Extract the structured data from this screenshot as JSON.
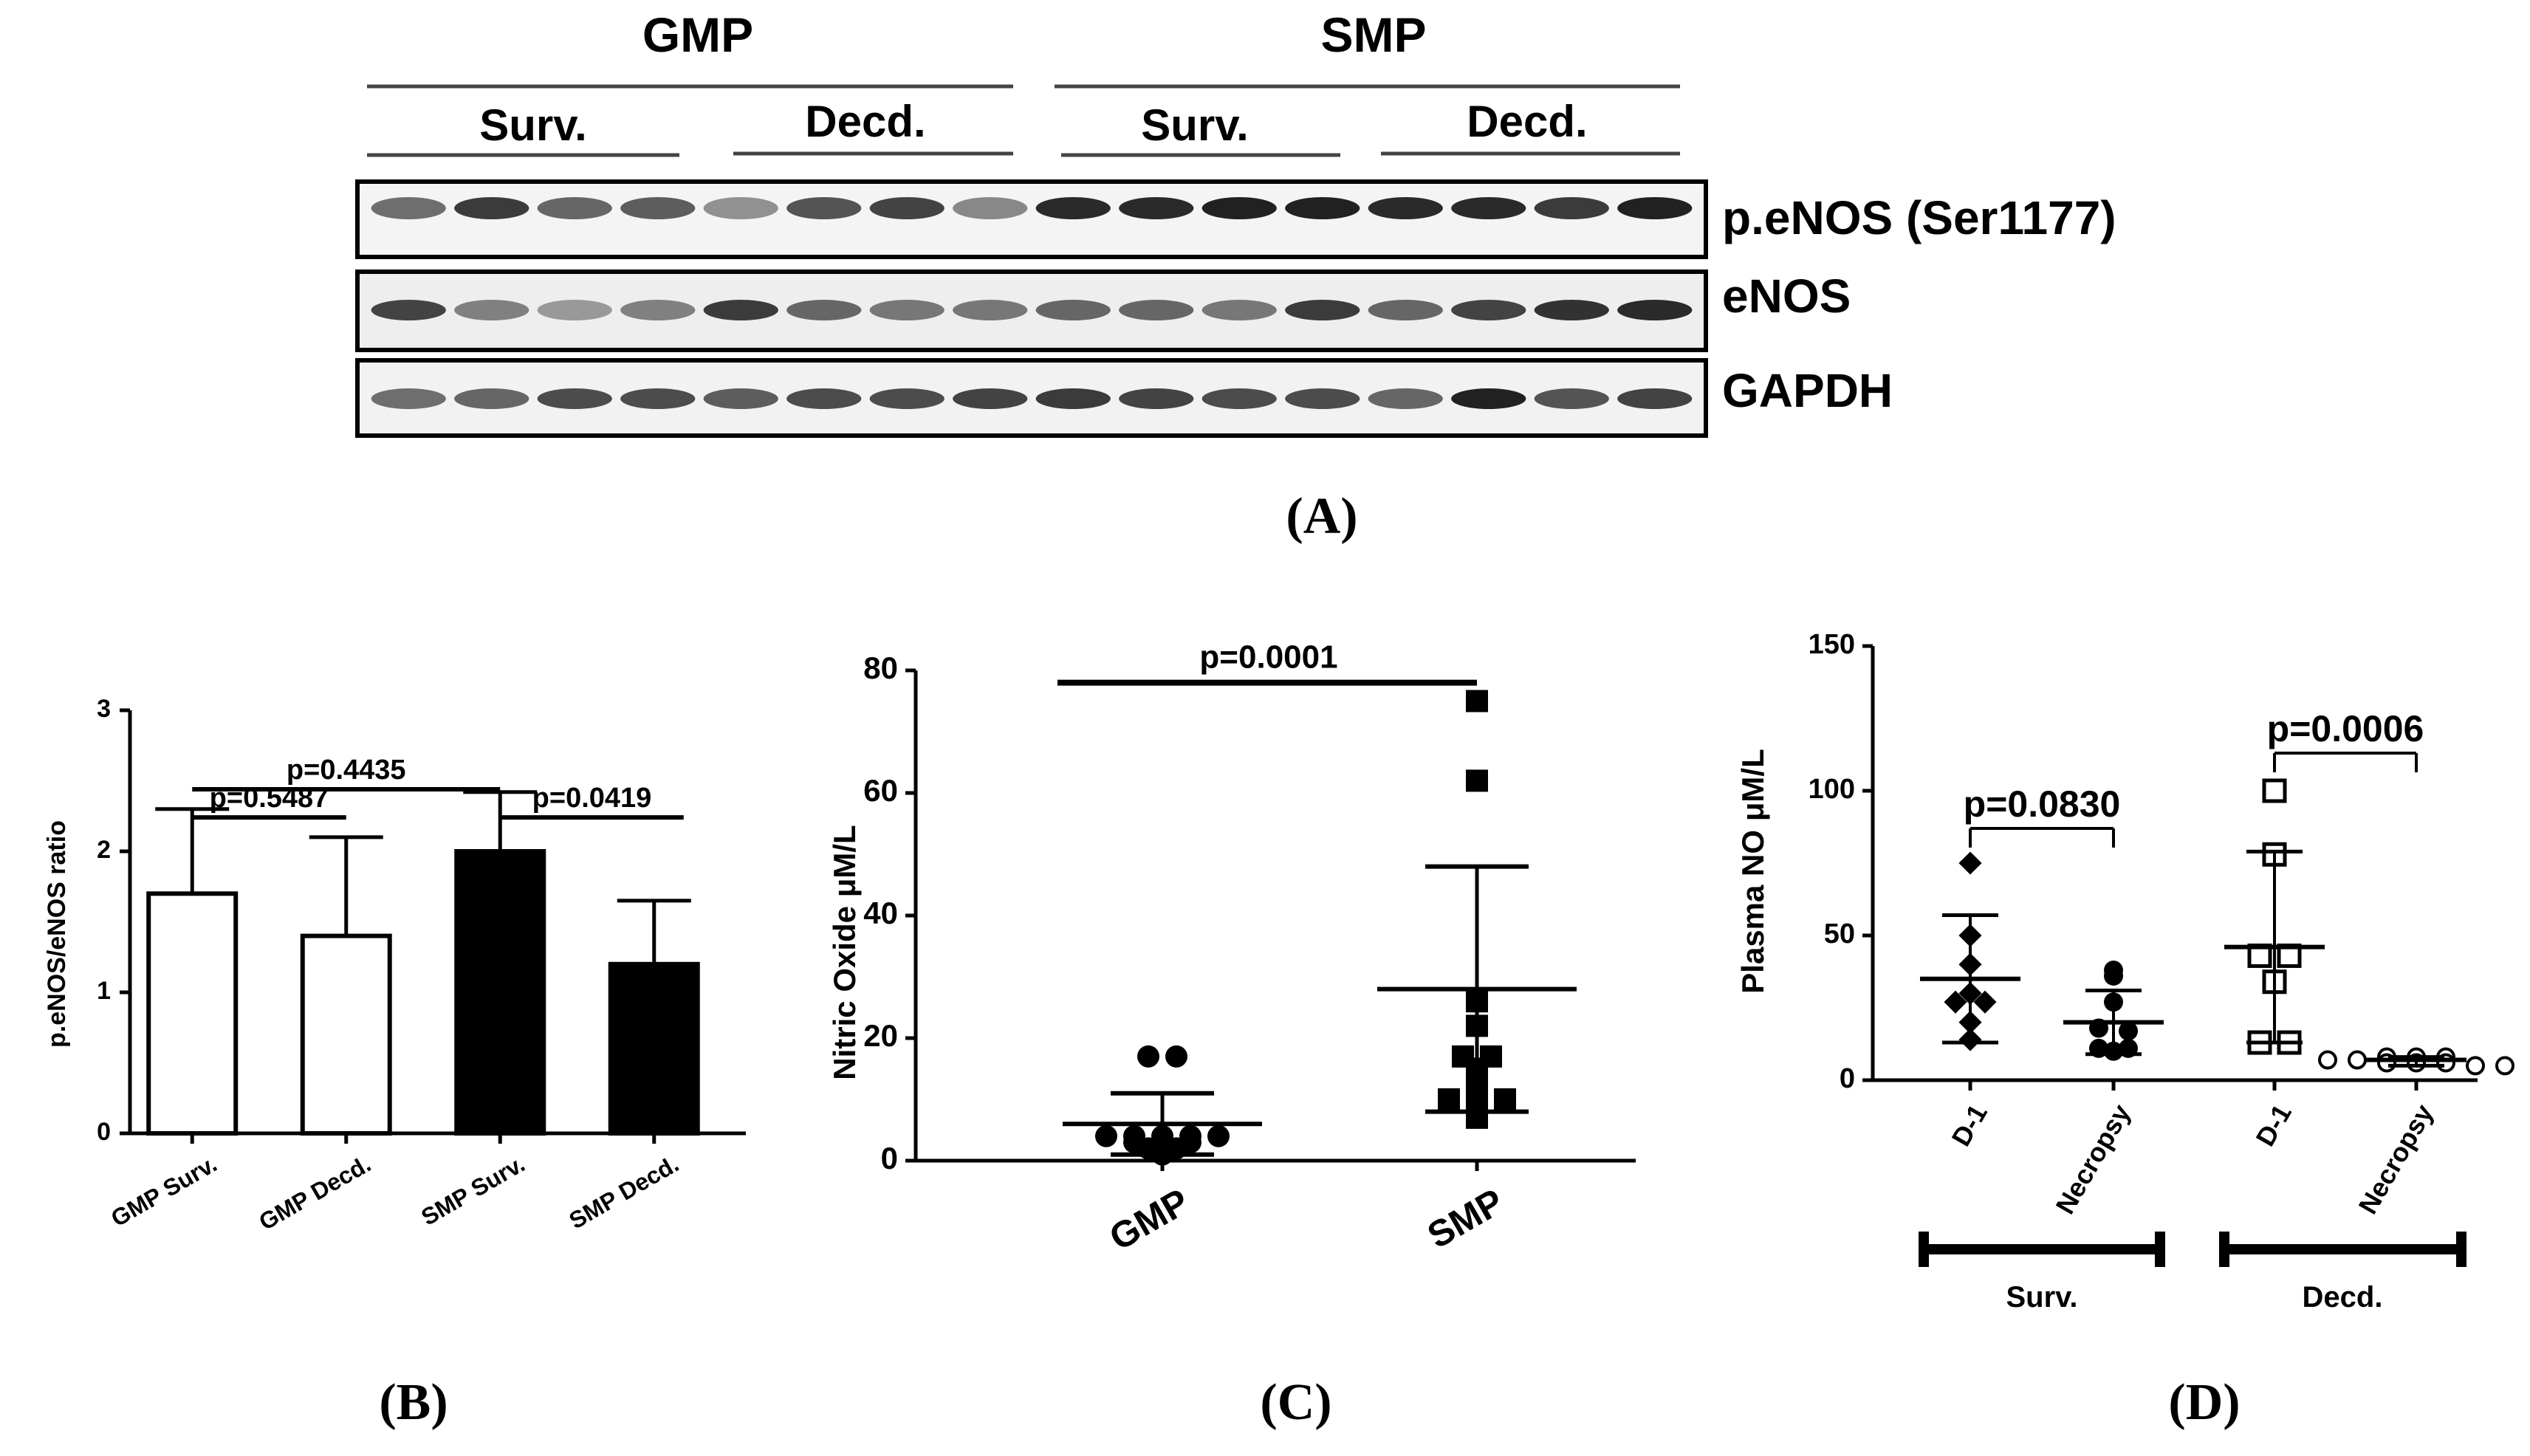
{
  "figure": {
    "panel_a": {
      "label": "(A)",
      "groups": [
        "GMP",
        "SMP"
      ],
      "subgroups": [
        "Surv.",
        "Decd.",
        "Surv.",
        "Decd."
      ],
      "blots": [
        "p.eNOS (Ser1177)",
        "eNOS",
        "GAPDH"
      ],
      "lane_count": 16
    },
    "panel_b": {
      "label": "(B)"
    },
    "panel_c": {
      "label": "(C)"
    },
    "panel_d": {
      "label": "(D)"
    }
  },
  "chart_data": [
    {
      "type": "bar",
      "panel": "B",
      "ylabel": "p.eNOS/eNOS ratio",
      "ylim": [
        0,
        3
      ],
      "yticks": [
        "0",
        "1",
        "2",
        "3"
      ],
      "categories": [
        "GMP Surv.",
        "GMP Decd.",
        "SMP Surv.",
        "SMP Decd."
      ],
      "values": [
        1.7,
        1.4,
        2.0,
        1.2
      ],
      "error_upper": [
        0.6,
        0.7,
        0.42,
        0.45
      ],
      "bar_fill": [
        "#ffffff",
        "#ffffff",
        "#000000",
        "#000000"
      ],
      "annotations": [
        {
          "text": "p=0.4435",
          "from": 0,
          "to": 2,
          "y": 2.44
        },
        {
          "text": "p=0.5487",
          "from": 0,
          "to": 1,
          "y": 2.24
        },
        {
          "text": "p=0.0419",
          "from": 2,
          "to": 3,
          "y": 2.24
        }
      ]
    },
    {
      "type": "scatter",
      "panel": "C",
      "ylabel": "Nitric Oxide μM/L",
      "ylim": [
        0,
        80
      ],
      "yticks": [
        "0",
        "20",
        "40",
        "60",
        "80"
      ],
      "categories": [
        "GMP",
        "SMP"
      ],
      "series": [
        {
          "name": "GMP",
          "marker": "circle",
          "mean": 6,
          "sd_low": 1,
          "sd_high": 11,
          "points": [
            17,
            17,
            4,
            4,
            4,
            4,
            4,
            3,
            3,
            3,
            2,
            2,
            1
          ]
        },
        {
          "name": "SMP",
          "marker": "square",
          "mean": 28,
          "sd_low": 8,
          "sd_high": 48,
          "points": [
            75,
            62,
            26,
            22,
            17,
            17,
            15,
            14,
            12,
            10,
            10,
            10,
            7
          ]
        }
      ],
      "annotations": [
        {
          "text": "p=0.0001",
          "from": 0,
          "to": 1,
          "y": 78
        }
      ]
    },
    {
      "type": "scatter",
      "panel": "D",
      "ylabel": "Plasma NO μM/L",
      "ylim": [
        0,
        150
      ],
      "yticks": [
        "0",
        "50",
        "100",
        "150"
      ],
      "categories": [
        "D-1",
        "Necropsy",
        "D-1",
        "Necropsy"
      ],
      "group_labels": [
        "Surv.",
        "Decd."
      ],
      "series": [
        {
          "name": "Surv. D-1",
          "marker": "diamond",
          "mean": 35,
          "sd_low": 13,
          "sd_high": 57,
          "points": [
            75,
            50,
            40,
            30,
            27,
            27,
            20,
            14
          ]
        },
        {
          "name": "Surv. Necropsy",
          "marker": "circle",
          "mean": 20,
          "sd_low": 9,
          "sd_high": 31,
          "points": [
            38,
            36,
            27,
            18,
            17,
            11,
            11,
            10
          ]
        },
        {
          "name": "Decd. D-1",
          "marker": "open-square",
          "mean": 46,
          "sd_low": 13,
          "sd_high": 79,
          "points": [
            100,
            78,
            43,
            43,
            34,
            13,
            13
          ]
        },
        {
          "name": "Decd. Necropsy",
          "marker": "open-circle",
          "mean": 7,
          "sd_low": 5,
          "sd_high": 8,
          "points": [
            8,
            8,
            8,
            7,
            7,
            6,
            6,
            6,
            5,
            5
          ]
        }
      ],
      "annotations": [
        {
          "text": "p=0.0830",
          "from": 0,
          "to": 1,
          "y": 87
        },
        {
          "text": "p=0.0006",
          "from": 2,
          "to": 3,
          "y": 113
        }
      ]
    }
  ]
}
